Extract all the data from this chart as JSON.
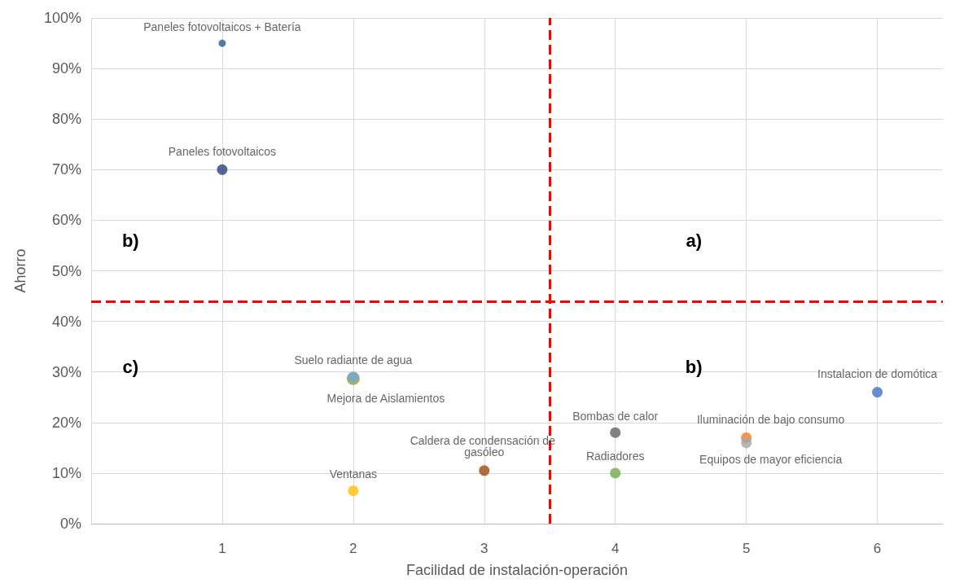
{
  "chart_data": {
    "type": "scatter",
    "xlabel": "Facilidad de instalación-operación",
    "ylabel": "Ahorro",
    "xlim": [
      0,
      6.5
    ],
    "xticks": [
      {
        "value": 0,
        "label": null
      },
      1,
      2,
      3,
      4,
      5,
      6
    ],
    "ylim": [
      0,
      100
    ],
    "yticks": [
      {
        "value": 0,
        "label": "0%"
      },
      {
        "value": 10,
        "label": "10%"
      },
      {
        "value": 20,
        "label": "20%"
      },
      {
        "value": 30,
        "label": "30%"
      },
      {
        "value": 40,
        "label": "40%"
      },
      {
        "value": 50,
        "label": "50%"
      },
      {
        "value": 60,
        "label": "60%"
      },
      {
        "value": 70,
        "label": "70%"
      },
      {
        "value": 80,
        "label": "80%"
      },
      {
        "value": 90,
        "label": "90%"
      },
      {
        "value": 100,
        "label": "100%"
      }
    ],
    "grid": true,
    "legend": false,
    "marker": "circle",
    "series": [
      {
        "name": "Paneles fotovoltaicos + Batería",
        "color": "#255e91",
        "x": [
          1
        ],
        "values": [
          95
        ]
      },
      {
        "name": "Paneles fotovoltaicos",
        "color": "#264478",
        "x": [
          1
        ],
        "values": [
          70
        ]
      },
      {
        "name": "Suelo radiante de agua",
        "color": "#6fa8dc",
        "x": [
          2
        ],
        "values": [
          29
        ]
      },
      {
        "name": "Mejora de Aislamientos",
        "color": "#9e9a3a",
        "x": [
          2
        ],
        "values": [
          28.7
        ]
      },
      {
        "name": "Ventanas",
        "color": "#ffc000",
        "x": [
          2
        ],
        "values": [
          6.5
        ]
      },
      {
        "name": "Caldera de condensación de gasóleo",
        "color": "#9e480e",
        "x": [
          3
        ],
        "values": [
          10.5
        ]
      },
      {
        "name": "Bombas de calor",
        "color": "#636363",
        "x": [
          4
        ],
        "values": [
          18
        ]
      },
      {
        "name": "Radiadores",
        "color": "#70ad47",
        "x": [
          4
        ],
        "values": [
          10
        ]
      },
      {
        "name": "Iluminación de bajo consumo",
        "color": "#ed7d31",
        "x": [
          5
        ],
        "values": [
          17
        ]
      },
      {
        "name": "Equipos de mayor eficiencia",
        "color": "#a5a5a5",
        "x": [
          5
        ],
        "values": [
          16
        ]
      },
      {
        "name": "Instalacion de domótica",
        "color": "#4472c4",
        "x": [
          6
        ],
        "values": [
          26
        ]
      }
    ],
    "ref_lines": [
      {
        "axis": "x",
        "value": 3.5,
        "color": "#ff0000",
        "line_style": "dashed"
      },
      {
        "axis": "y",
        "value": 44,
        "color": "#ff0000",
        "line_style": "dashed"
      }
    ],
    "annotations": [
      "a)",
      "b)",
      "b)",
      "c)"
    ]
  }
}
